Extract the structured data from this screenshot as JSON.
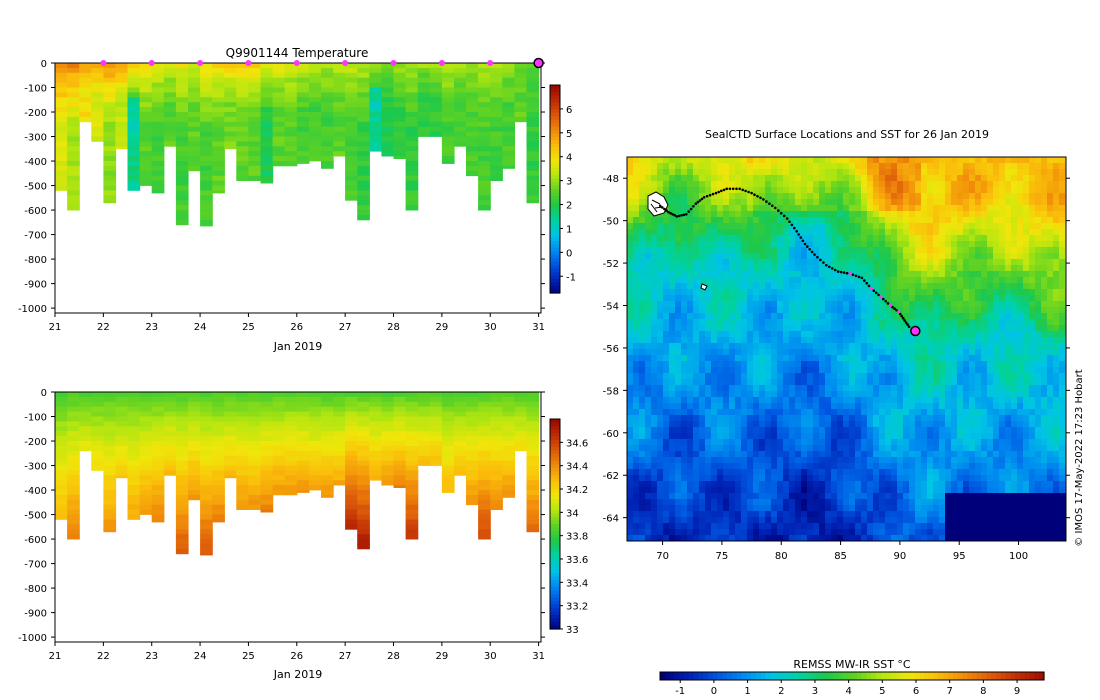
{
  "colors": {
    "palette": [
      "#00007a",
      "#0022b4",
      "#0055e0",
      "#008cf0",
      "#00c4e6",
      "#00d2a0",
      "#1ec84a",
      "#5ed224",
      "#b4e610",
      "#f0e60a",
      "#fabe0a",
      "#f08c0a",
      "#dc5a0a",
      "#be2d05",
      "#9a0a00"
    ],
    "profile_marker": "#ff33ff",
    "track_dot": "#000000"
  },
  "chart_data": [
    {
      "type": "heatmap",
      "title": "Q9901144  Temperature",
      "xlabel": "Jan 2019",
      "ylabel": "",
      "x_ticks": [
        "21",
        "22",
        "23",
        "24",
        "25",
        "26",
        "27",
        "28",
        "29",
        "30",
        "31"
      ],
      "xlim": [
        21,
        31.05
      ],
      "y_ticks": [
        "0",
        "-100",
        "-200",
        "-300",
        "-400",
        "-500",
        "-600",
        "-700",
        "-800",
        "-900",
        "-1000"
      ],
      "ylim": [
        -1020,
        0
      ],
      "colorbar": {
        "ticks": [
          "-1",
          "0",
          "1",
          "2",
          "3",
          "4",
          "5",
          "6"
        ],
        "range": [
          -1.7,
          7
        ]
      },
      "profile_markers_day": [
        22,
        23,
        24,
        25,
        26,
        27,
        28,
        29,
        30
      ],
      "latest_profile_day": 31,
      "profiles": [
        {
          "day": 21.0,
          "depth": 520,
          "surface": 5.6,
          "bottom": 3.6
        },
        {
          "day": 21.25,
          "depth": 600,
          "surface": 5.4,
          "bottom": 3.2
        },
        {
          "day": 21.5,
          "depth": 240,
          "surface": 5.2,
          "bottom": 4.0
        },
        {
          "day": 21.75,
          "depth": 320,
          "surface": 5.0,
          "bottom": 3.6
        },
        {
          "day": 22.0,
          "depth": 570,
          "surface": 5.3,
          "bottom": 3.0
        },
        {
          "day": 22.25,
          "depth": 350,
          "surface": 5.0,
          "bottom": 3.4
        },
        {
          "day": 22.5,
          "depth": 520,
          "surface": 4.6,
          "bottom": 1.6
        },
        {
          "day": 22.75,
          "depth": 500,
          "surface": 4.4,
          "bottom": 2.6
        },
        {
          "day": 23.0,
          "depth": 530,
          "surface": 4.0,
          "bottom": 2.4
        },
        {
          "day": 23.25,
          "depth": 340,
          "surface": 3.8,
          "bottom": 2.6
        },
        {
          "day": 23.5,
          "depth": 660,
          "surface": 4.0,
          "bottom": 2.4
        },
        {
          "day": 23.75,
          "depth": 440,
          "surface": 3.4,
          "bottom": 2.6
        },
        {
          "day": 24.0,
          "depth": 665,
          "surface": 4.2,
          "bottom": 2.4
        },
        {
          "day": 24.25,
          "depth": 530,
          "surface": 4.3,
          "bottom": 2.6
        },
        {
          "day": 24.5,
          "depth": 350,
          "surface": 4.5,
          "bottom": 2.8
        },
        {
          "day": 24.75,
          "depth": 480,
          "surface": 4.6,
          "bottom": 2.6
        },
        {
          "day": 25.0,
          "depth": 480,
          "surface": 4.4,
          "bottom": 2.6
        },
        {
          "day": 25.25,
          "depth": 490,
          "surface": 4.0,
          "bottom": 2.0
        },
        {
          "day": 25.5,
          "depth": 420,
          "surface": 3.9,
          "bottom": 2.6
        },
        {
          "day": 25.75,
          "depth": 420,
          "surface": 3.8,
          "bottom": 2.6
        },
        {
          "day": 26.0,
          "depth": 410,
          "surface": 3.6,
          "bottom": 2.4
        },
        {
          "day": 26.25,
          "depth": 400,
          "surface": 3.4,
          "bottom": 2.4
        },
        {
          "day": 26.5,
          "depth": 430,
          "surface": 3.4,
          "bottom": 2.4
        },
        {
          "day": 26.75,
          "depth": 380,
          "surface": 3.6,
          "bottom": 2.6
        },
        {
          "day": 27.0,
          "depth": 560,
          "surface": 3.5,
          "bottom": 2.4
        },
        {
          "day": 27.25,
          "depth": 640,
          "surface": 3.4,
          "bottom": 2.2
        },
        {
          "day": 27.5,
          "depth": 360,
          "surface": 3.3,
          "bottom": 1.6
        },
        {
          "day": 27.75,
          "depth": 380,
          "surface": 3.2,
          "bottom": 2.0
        },
        {
          "day": 28.0,
          "depth": 390,
          "surface": 3.2,
          "bottom": 2.2
        },
        {
          "day": 28.25,
          "depth": 600,
          "surface": 3.3,
          "bottom": 2.2
        },
        {
          "day": 28.5,
          "depth": 300,
          "surface": 3.2,
          "bottom": 2.2
        },
        {
          "day": 28.75,
          "depth": 300,
          "surface": 3.3,
          "bottom": 2.2
        },
        {
          "day": 29.0,
          "depth": 410,
          "surface": 3.6,
          "bottom": 2.4
        },
        {
          "day": 29.25,
          "depth": 340,
          "surface": 3.5,
          "bottom": 2.4
        },
        {
          "day": 29.5,
          "depth": 460,
          "surface": 3.2,
          "bottom": 2.4
        },
        {
          "day": 29.75,
          "depth": 600,
          "surface": 3.4,
          "bottom": 2.4
        },
        {
          "day": 30.0,
          "depth": 480,
          "surface": 3.2,
          "bottom": 2.4
        },
        {
          "day": 30.25,
          "depth": 430,
          "surface": 3.0,
          "bottom": 2.4
        },
        {
          "day": 30.5,
          "depth": 240,
          "surface": 2.8,
          "bottom": 2.6
        },
        {
          "day": 30.75,
          "depth": 570,
          "surface": 2.6,
          "bottom": 2.2
        }
      ]
    },
    {
      "type": "heatmap",
      "title": "",
      "xlabel": "Jan 2019",
      "ylabel": "",
      "x_ticks": [
        "21",
        "22",
        "23",
        "24",
        "25",
        "26",
        "27",
        "28",
        "29",
        "30",
        "31"
      ],
      "xlim": [
        21,
        31.05
      ],
      "y_ticks": [
        "0",
        "-100",
        "-200",
        "-300",
        "-400",
        "-500",
        "-600",
        "-700",
        "-800",
        "-900",
        "-1000"
      ],
      "ylim": [
        -1020,
        0
      ],
      "colorbar": {
        "ticks": [
          "34.6",
          "34.4",
          "34.2",
          "34",
          "33.8",
          "33.6",
          "33.4",
          "33.2",
          "33"
        ],
        "range": [
          33,
          34.8
        ]
      },
      "profiles": [
        {
          "day": 21.0,
          "depth": 520,
          "surface": 33.85,
          "bottom": 34.3
        },
        {
          "day": 21.25,
          "depth": 600,
          "surface": 33.85,
          "bottom": 34.45
        },
        {
          "day": 21.5,
          "depth": 240,
          "surface": 33.85,
          "bottom": 34.15
        },
        {
          "day": 21.75,
          "depth": 320,
          "surface": 33.85,
          "bottom": 34.2
        },
        {
          "day": 22.0,
          "depth": 570,
          "surface": 33.85,
          "bottom": 34.4
        },
        {
          "day": 22.25,
          "depth": 350,
          "surface": 33.85,
          "bottom": 34.25
        },
        {
          "day": 22.5,
          "depth": 520,
          "surface": 33.85,
          "bottom": 34.35
        },
        {
          "day": 22.75,
          "depth": 500,
          "surface": 33.85,
          "bottom": 34.4
        },
        {
          "day": 23.0,
          "depth": 530,
          "surface": 33.85,
          "bottom": 34.45
        },
        {
          "day": 23.25,
          "depth": 340,
          "surface": 33.85,
          "bottom": 34.3
        },
        {
          "day": 23.5,
          "depth": 660,
          "surface": 33.85,
          "bottom": 34.55
        },
        {
          "day": 23.75,
          "depth": 440,
          "surface": 33.85,
          "bottom": 34.4
        },
        {
          "day": 24.0,
          "depth": 665,
          "surface": 33.85,
          "bottom": 34.55
        },
        {
          "day": 24.25,
          "depth": 530,
          "surface": 33.85,
          "bottom": 34.45
        },
        {
          "day": 24.5,
          "depth": 350,
          "surface": 33.85,
          "bottom": 34.3
        },
        {
          "day": 24.75,
          "depth": 480,
          "surface": 33.85,
          "bottom": 34.4
        },
        {
          "day": 25.0,
          "depth": 480,
          "surface": 33.85,
          "bottom": 34.4
        },
        {
          "day": 25.25,
          "depth": 490,
          "surface": 33.85,
          "bottom": 34.45
        },
        {
          "day": 25.5,
          "depth": 420,
          "surface": 33.85,
          "bottom": 34.4
        },
        {
          "day": 25.75,
          "depth": 420,
          "surface": 33.85,
          "bottom": 34.4
        },
        {
          "day": 26.0,
          "depth": 410,
          "surface": 33.85,
          "bottom": 34.4
        },
        {
          "day": 26.25,
          "depth": 400,
          "surface": 33.85,
          "bottom": 34.35
        },
        {
          "day": 26.5,
          "depth": 430,
          "surface": 33.85,
          "bottom": 34.4
        },
        {
          "day": 26.75,
          "depth": 380,
          "surface": 33.85,
          "bottom": 34.35
        },
        {
          "day": 27.0,
          "depth": 560,
          "surface": 33.85,
          "bottom": 34.7
        },
        {
          "day": 27.25,
          "depth": 640,
          "surface": 33.85,
          "bottom": 34.75
        },
        {
          "day": 27.5,
          "depth": 360,
          "surface": 33.85,
          "bottom": 34.35
        },
        {
          "day": 27.75,
          "depth": 380,
          "surface": 33.85,
          "bottom": 34.4
        },
        {
          "day": 28.0,
          "depth": 390,
          "surface": 33.85,
          "bottom": 34.45
        },
        {
          "day": 28.25,
          "depth": 600,
          "surface": 33.85,
          "bottom": 34.65
        },
        {
          "day": 28.5,
          "depth": 300,
          "surface": 33.85,
          "bottom": 34.3
        },
        {
          "day": 28.75,
          "depth": 300,
          "surface": 33.85,
          "bottom": 34.3
        },
        {
          "day": 29.0,
          "depth": 410,
          "surface": 33.85,
          "bottom": 34.3
        },
        {
          "day": 29.25,
          "depth": 340,
          "surface": 33.85,
          "bottom": 34.3
        },
        {
          "day": 29.5,
          "depth": 460,
          "surface": 33.85,
          "bottom": 34.4
        },
        {
          "day": 29.75,
          "depth": 600,
          "surface": 33.85,
          "bottom": 34.6
        },
        {
          "day": 30.0,
          "depth": 480,
          "surface": 33.85,
          "bottom": 34.45
        },
        {
          "day": 30.25,
          "depth": 430,
          "surface": 33.85,
          "bottom": 34.4
        },
        {
          "day": 30.5,
          "depth": 240,
          "surface": 33.85,
          "bottom": 34.2
        },
        {
          "day": 30.75,
          "depth": 570,
          "surface": 33.85,
          "bottom": 34.5
        }
      ]
    },
    {
      "type": "heatmap",
      "title": "SealCTD Surface Locations and SST for 26 Jan 2019",
      "xlabel": "",
      "ylabel": "",
      "x_ticks": [
        "70",
        "75",
        "80",
        "85",
        "90",
        "95",
        "100"
      ],
      "xlim": [
        67,
        104
      ],
      "y_ticks": [
        "-48",
        "-50",
        "-52",
        "-54",
        "-56",
        "-58",
        "-60",
        "-62",
        "-64"
      ],
      "ylim": [
        -65.1,
        -47
      ]
    }
  ],
  "sst_map": {
    "title": "SealCTD Surface Locations and SST for 26 Jan 2019",
    "credit": "© IMOS 17-May-2022 17:23 Hobart",
    "track_lon_lat": [
      [
        69.8,
        -49.3
      ],
      [
        70.5,
        -49.6
      ],
      [
        71.2,
        -49.8
      ],
      [
        72.0,
        -49.7
      ],
      [
        72.8,
        -49.2
      ],
      [
        73.5,
        -48.9
      ],
      [
        74.5,
        -48.7
      ],
      [
        75.4,
        -48.5
      ],
      [
        76.5,
        -48.5
      ],
      [
        77.5,
        -48.7
      ],
      [
        78.5,
        -49.0
      ],
      [
        79.5,
        -49.4
      ],
      [
        80.5,
        -49.9
      ],
      [
        81.3,
        -50.5
      ],
      [
        82.0,
        -51.1
      ],
      [
        82.8,
        -51.6
      ],
      [
        83.8,
        -52.1
      ],
      [
        84.8,
        -52.4
      ],
      [
        85.8,
        -52.5
      ],
      [
        86.8,
        -52.7
      ],
      [
        87.6,
        -53.2
      ],
      [
        88.4,
        -53.6
      ],
      [
        89.2,
        -54.0
      ],
      [
        89.9,
        -54.3
      ],
      [
        90.4,
        -54.7
      ],
      [
        90.9,
        -55.1
      ]
    ],
    "pink_track_lon_lat": [
      [
        85.8,
        -52.5
      ],
      [
        87.6,
        -53.2
      ],
      [
        88.4,
        -53.6
      ],
      [
        89.2,
        -54.0
      ],
      [
        89.9,
        -54.3
      ]
    ],
    "current_location": [
      91.3,
      -55.2
    ],
    "colorbar": {
      "label": "REMSS MW-IR SST °C",
      "ticks": [
        "-1",
        "0",
        "1",
        "2",
        "3",
        "4",
        "5",
        "6",
        "7",
        "8",
        "9"
      ],
      "range": [
        -1.6,
        9.8
      ]
    }
  }
}
